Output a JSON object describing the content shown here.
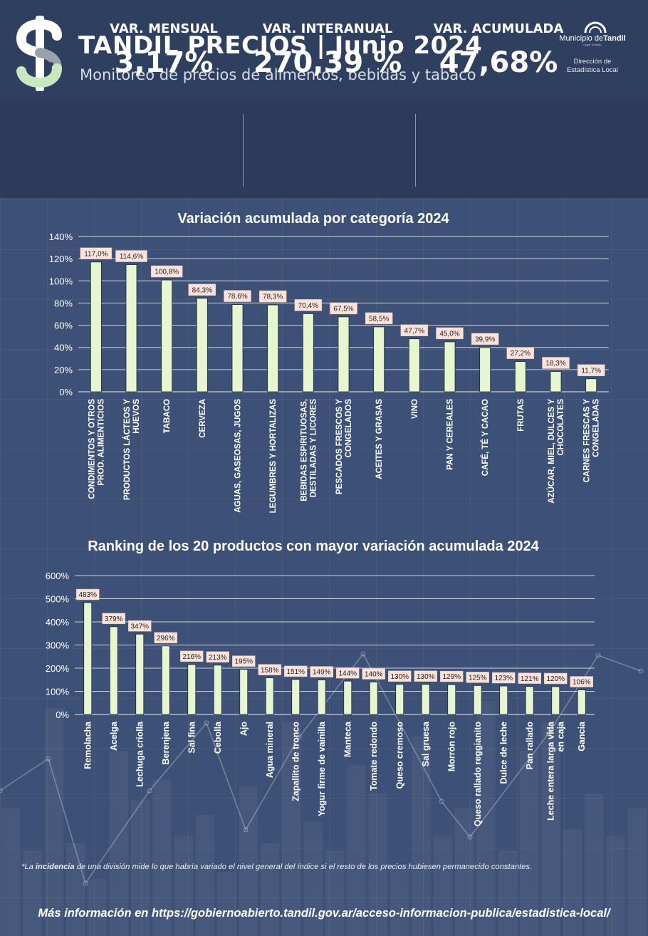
{
  "header": {
    "title": "TANDIL PRECIOS | Junio 2024",
    "subtitle": "Monitoreo de precios de alimentos, bebidas y tabaco",
    "logo_icon": "dollar-sign-icon",
    "municipio": {
      "name_prefix": "Municipio de",
      "name_city": "Tandil",
      "tagline": "Lugar Soñado",
      "department_line1": "Dirección de",
      "department_line2": "Estadística Local"
    }
  },
  "stats": [
    {
      "label": "VAR. MENSUAL",
      "value": "3,17%"
    },
    {
      "label": "VAR. INTERANUAL",
      "value": "270,39 %"
    },
    {
      "label": "VAR. ACUMULADA",
      "value": "47,68%"
    }
  ],
  "colors": {
    "bar_fill": "#e6f7cf",
    "label_bg": "#fbe3dc",
    "header_bg": "#2f3f5f",
    "background": "#3d5075"
  },
  "chart_data": [
    {
      "type": "bar",
      "title": "Variación acumulada por categoría 2024",
      "ylim": [
        0,
        140
      ],
      "yticks": [
        "0%",
        "20%",
        "40%",
        "60%",
        "80%",
        "100%",
        "120%",
        "140%"
      ],
      "categories": [
        [
          "CONDIMENTOS Y OTROS",
          "PROD. ALIMENTICIOS"
        ],
        [
          "PRODUCTOS LÁCTEOS Y",
          "HUEVOS"
        ],
        [
          "TABACO"
        ],
        [
          "CERVEZA"
        ],
        [
          "AGUAS, GASEOSAS, JUGOS"
        ],
        [
          "LEGUMBRES Y HORTALIZAS"
        ],
        [
          "BEBIDAS ESPIRITUOSAS,",
          "DESTILADAS Y LICORES"
        ],
        [
          "PESCADOS FRESCOS Y",
          "CONGELADOS"
        ],
        [
          "ACEITES Y GRASAS"
        ],
        [
          "VINO"
        ],
        [
          "PAN Y CEREALES"
        ],
        [
          "CAFÉ, TÉ Y CACAO"
        ],
        [
          "FRUTAS"
        ],
        [
          "AZÚCAR, MIEL, DULCES Y",
          "CHOCOLATES"
        ],
        [
          "CARNES FRESCAS Y",
          "CONGELADAS"
        ]
      ],
      "values": [
        117.0,
        114.6,
        100.8,
        84.3,
        78.6,
        78.3,
        70.4,
        67.5,
        58.5,
        47.7,
        45.0,
        39.9,
        27.2,
        18.3,
        11.7
      ],
      "data_labels": [
        "117,0%",
        "114,6%",
        "100,8%",
        "84,3%",
        "78,6%",
        "78,3%",
        "70,4%",
        "67,5%",
        "58,5%",
        "47,7%",
        "45,0%",
        "39,9%",
        "27,2%",
        "18,3%",
        "11,7%"
      ],
      "grid": true
    },
    {
      "type": "bar",
      "title": "Ranking de los 20 productos con mayor variación acumulada 2024",
      "ylim": [
        0,
        600
      ],
      "yticks": [
        "0%",
        "100%",
        "200%",
        "300%",
        "400%",
        "500%",
        "600%"
      ],
      "categories": [
        [
          "Remolacha"
        ],
        [
          "Acelga"
        ],
        [
          "Lechuga criolla"
        ],
        [
          "Berenjena"
        ],
        [
          "Sal fina"
        ],
        [
          "Cebolla"
        ],
        [
          "Ajo"
        ],
        [
          "Agua mineral"
        ],
        [
          "Zapallito de tronco"
        ],
        [
          "Yogur firme de vainilla"
        ],
        [
          "Manteca"
        ],
        [
          "Tomate redondo"
        ],
        [
          "Queso cremoso"
        ],
        [
          "Sal gruesa"
        ],
        [
          "Morrón rojo"
        ],
        [
          "Queso rallado reggianito"
        ],
        [
          "Dulce de leche"
        ],
        [
          "Pan rallado"
        ],
        [
          "Leche entera larga vida",
          "en caja"
        ],
        [
          "Gancia"
        ]
      ],
      "values": [
        483,
        379,
        347,
        296,
        216,
        213,
        195,
        158,
        151,
        149,
        144,
        140,
        130,
        130,
        129,
        125,
        123,
        121,
        120,
        106
      ],
      "data_labels": [
        "483%",
        "379%",
        "347%",
        "296%",
        "216%",
        "213%",
        "195%",
        "158%",
        "151%",
        "149%",
        "144%",
        "140%",
        "130%",
        "130%",
        "129%",
        "125%",
        "123%",
        "121%",
        "120%",
        "106%"
      ],
      "grid": true
    }
  ],
  "footnote": {
    "prefix": "*La ",
    "bold": "incidencia",
    "rest": " de una división mide lo que habría variado el nivel general del índice si el resto de los precios hubiesen permanecido constantes."
  },
  "more_info": "Más información en https://gobiernoabierto.tandil.gov.ar/acceso-informacion-publica/estadistica-local/"
}
